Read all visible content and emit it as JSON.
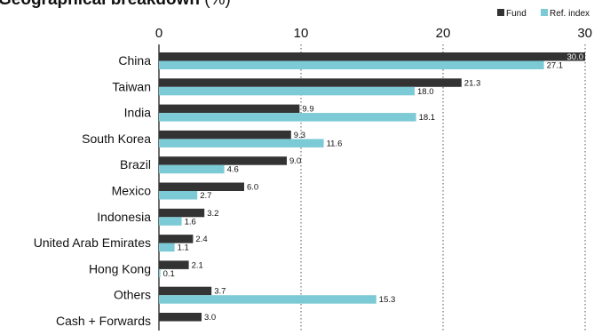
{
  "chart_data": {
    "type": "bar",
    "orientation": "horizontal",
    "title": "Geographical breakdown",
    "title_suffix": " (%)",
    "categories": [
      "China",
      "Taiwan",
      "India",
      "South Korea",
      "Brazil",
      "Mexico",
      "Indonesia",
      "United Arab Emirates",
      "Hong Kong",
      "Others",
      "Cash + Forwards"
    ],
    "series": [
      {
        "name": "Fund",
        "color": "#333333",
        "values": [
          30.0,
          21.3,
          9.9,
          9.3,
          9.0,
          6.0,
          3.2,
          2.4,
          2.1,
          3.7,
          3.0
        ]
      },
      {
        "name": "Ref. index",
        "color": "#7ccad6",
        "values": [
          27.1,
          18.0,
          18.1,
          11.6,
          4.6,
          2.7,
          1.6,
          1.1,
          0.1,
          15.3,
          null
        ]
      }
    ],
    "xlim": [
      0,
      30
    ],
    "xticks": [
      0,
      10,
      20,
      30
    ],
    "grid": "vertical dotted",
    "legend": "top-right",
    "xlabel": "",
    "ylabel": ""
  }
}
